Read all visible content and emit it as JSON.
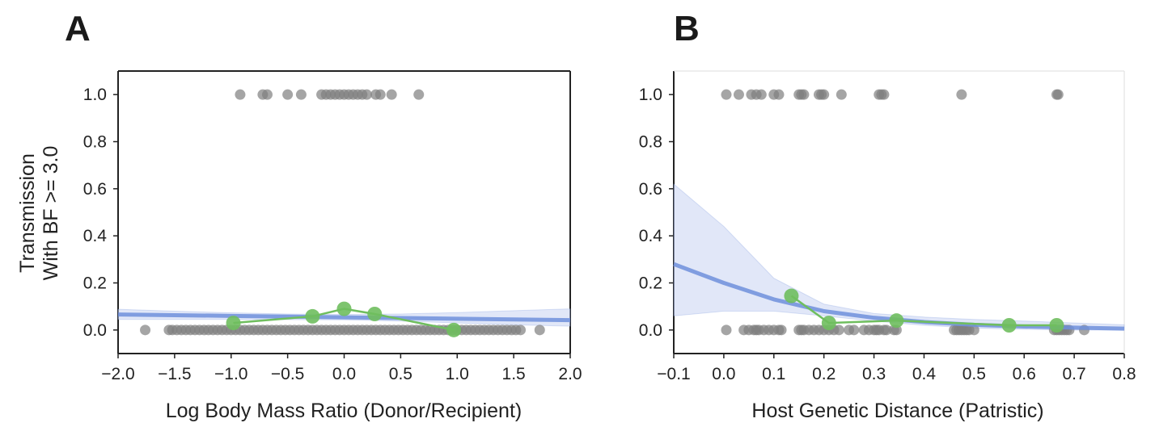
{
  "chart_data": [
    {
      "type": "scatter",
      "panel_label": "A",
      "xlabel": "Log Body Mass Ratio (Donor/Recipient)",
      "ylabel": "Transmission\nWith BF >= 3.0",
      "xlim": [
        -2.0,
        2.0
      ],
      "ylim": [
        -0.1,
        1.1
      ],
      "xticks": [
        "−2.0",
        "−1.5",
        "−1.0",
        "−0.5",
        "0.0",
        "0.5",
        "1.0",
        "1.5",
        "2.0"
      ],
      "yticks": [
        "0.0",
        "0.2",
        "0.4",
        "0.6",
        "0.8",
        "1.0"
      ],
      "grid": false,
      "legend": "none",
      "colors": {
        "points": "#7f7f7f",
        "fit": "#6f8fdc",
        "band": "#c9d4f2",
        "binned": "#6fbe5e"
      },
      "points_y1": [
        -0.92,
        -0.72,
        -0.68,
        -0.5,
        -0.38,
        -0.2,
        -0.16,
        -0.12,
        -0.08,
        -0.04,
        0.0,
        0.04,
        0.08,
        0.12,
        0.16,
        0.2,
        0.28,
        0.32,
        0.42,
        0.66
      ],
      "points_y0": [
        -1.76,
        -1.55,
        -1.52,
        -1.48,
        -1.44,
        -1.4,
        -1.36,
        -1.32,
        -1.28,
        -1.24,
        -1.2,
        -1.16,
        -1.12,
        -1.08,
        -1.04,
        -1.0,
        -0.96,
        -0.92,
        -0.88,
        -0.84,
        -0.8,
        -0.76,
        -0.72,
        -0.68,
        -0.64,
        -0.6,
        -0.56,
        -0.52,
        -0.48,
        -0.44,
        -0.4,
        -0.36,
        -0.32,
        -0.28,
        -0.24,
        -0.2,
        -0.16,
        -0.12,
        -0.08,
        -0.04,
        0.0,
        0.04,
        0.08,
        0.12,
        0.16,
        0.2,
        0.24,
        0.28,
        0.32,
        0.36,
        0.4,
        0.44,
        0.48,
        0.52,
        0.56,
        0.6,
        0.64,
        0.68,
        0.72,
        0.76,
        0.8,
        0.84,
        0.88,
        0.92,
        0.96,
        1.0,
        1.04,
        1.08,
        1.12,
        1.16,
        1.2,
        1.24,
        1.28,
        1.32,
        1.36,
        1.4,
        1.44,
        1.48,
        1.52,
        1.56,
        1.73
      ],
      "fit": {
        "x": [
          -2.0,
          -1.5,
          -1.0,
          -0.5,
          0.0,
          0.5,
          1.0,
          1.5,
          2.0
        ],
        "y": [
          0.066,
          0.063,
          0.06,
          0.057,
          0.054,
          0.051,
          0.048,
          0.045,
          0.042
        ],
        "lower": [
          0.045,
          0.045,
          0.045,
          0.044,
          0.043,
          0.038,
          0.03,
          0.022,
          0.016
        ],
        "upper": [
          0.088,
          0.08,
          0.073,
          0.068,
          0.066,
          0.068,
          0.074,
          0.082,
          0.09
        ]
      },
      "binned": {
        "x": [
          -0.98,
          -0.28,
          0.0,
          0.27,
          0.97
        ],
        "y": [
          0.03,
          0.058,
          0.09,
          0.068,
          0.0
        ]
      }
    },
    {
      "type": "scatter",
      "panel_label": "B",
      "xlabel": "Host Genetic Distance (Patristic)",
      "ylabel": "",
      "xlim": [
        -0.1,
        0.8
      ],
      "ylim": [
        -0.1,
        1.1
      ],
      "xticks": [
        "−0.1",
        "0.0",
        "0.1",
        "0.2",
        "0.3",
        "0.4",
        "0.5",
        "0.6",
        "0.7",
        "0.8"
      ],
      "yticks": [
        "0.0",
        "0.2",
        "0.4",
        "0.6",
        "0.8",
        "1.0"
      ],
      "grid": false,
      "legend": "none",
      "colors": {
        "points": "#7f7f7f",
        "fit": "#6f8fdc",
        "band": "#c9d4f2",
        "binned": "#6fbe5e"
      },
      "points_y1": [
        0.005,
        0.03,
        0.055,
        0.065,
        0.075,
        0.1,
        0.11,
        0.15,
        0.155,
        0.16,
        0.19,
        0.195,
        0.2,
        0.235,
        0.31,
        0.315,
        0.32,
        0.475,
        0.665,
        0.668
      ],
      "points_y0": [
        0.005,
        0.04,
        0.05,
        0.06,
        0.065,
        0.07,
        0.08,
        0.09,
        0.1,
        0.11,
        0.115,
        0.15,
        0.155,
        0.16,
        0.17,
        0.18,
        0.19,
        0.2,
        0.21,
        0.22,
        0.23,
        0.25,
        0.26,
        0.28,
        0.29,
        0.3,
        0.305,
        0.31,
        0.32,
        0.325,
        0.34,
        0.345,
        0.46,
        0.465,
        0.47,
        0.475,
        0.48,
        0.485,
        0.49,
        0.5,
        0.66,
        0.665,
        0.67,
        0.675,
        0.68,
        0.685,
        0.69,
        0.72
      ],
      "fit": {
        "x": [
          -0.1,
          0.0,
          0.1,
          0.2,
          0.3,
          0.4,
          0.5,
          0.6,
          0.7,
          0.8
        ],
        "y": [
          0.28,
          0.2,
          0.13,
          0.08,
          0.052,
          0.034,
          0.022,
          0.015,
          0.01,
          0.006
        ],
        "lower": [
          0.06,
          0.08,
          0.08,
          0.06,
          0.038,
          0.02,
          0.008,
          0.003,
          0.0,
          0.0
        ],
        "upper": [
          0.62,
          0.44,
          0.22,
          0.11,
          0.07,
          0.055,
          0.045,
          0.038,
          0.03,
          0.022
        ]
      },
      "binned": {
        "x": [
          0.135,
          0.21,
          0.345,
          0.57,
          0.665
        ],
        "y": [
          0.145,
          0.03,
          0.04,
          0.02,
          0.02
        ]
      }
    }
  ]
}
